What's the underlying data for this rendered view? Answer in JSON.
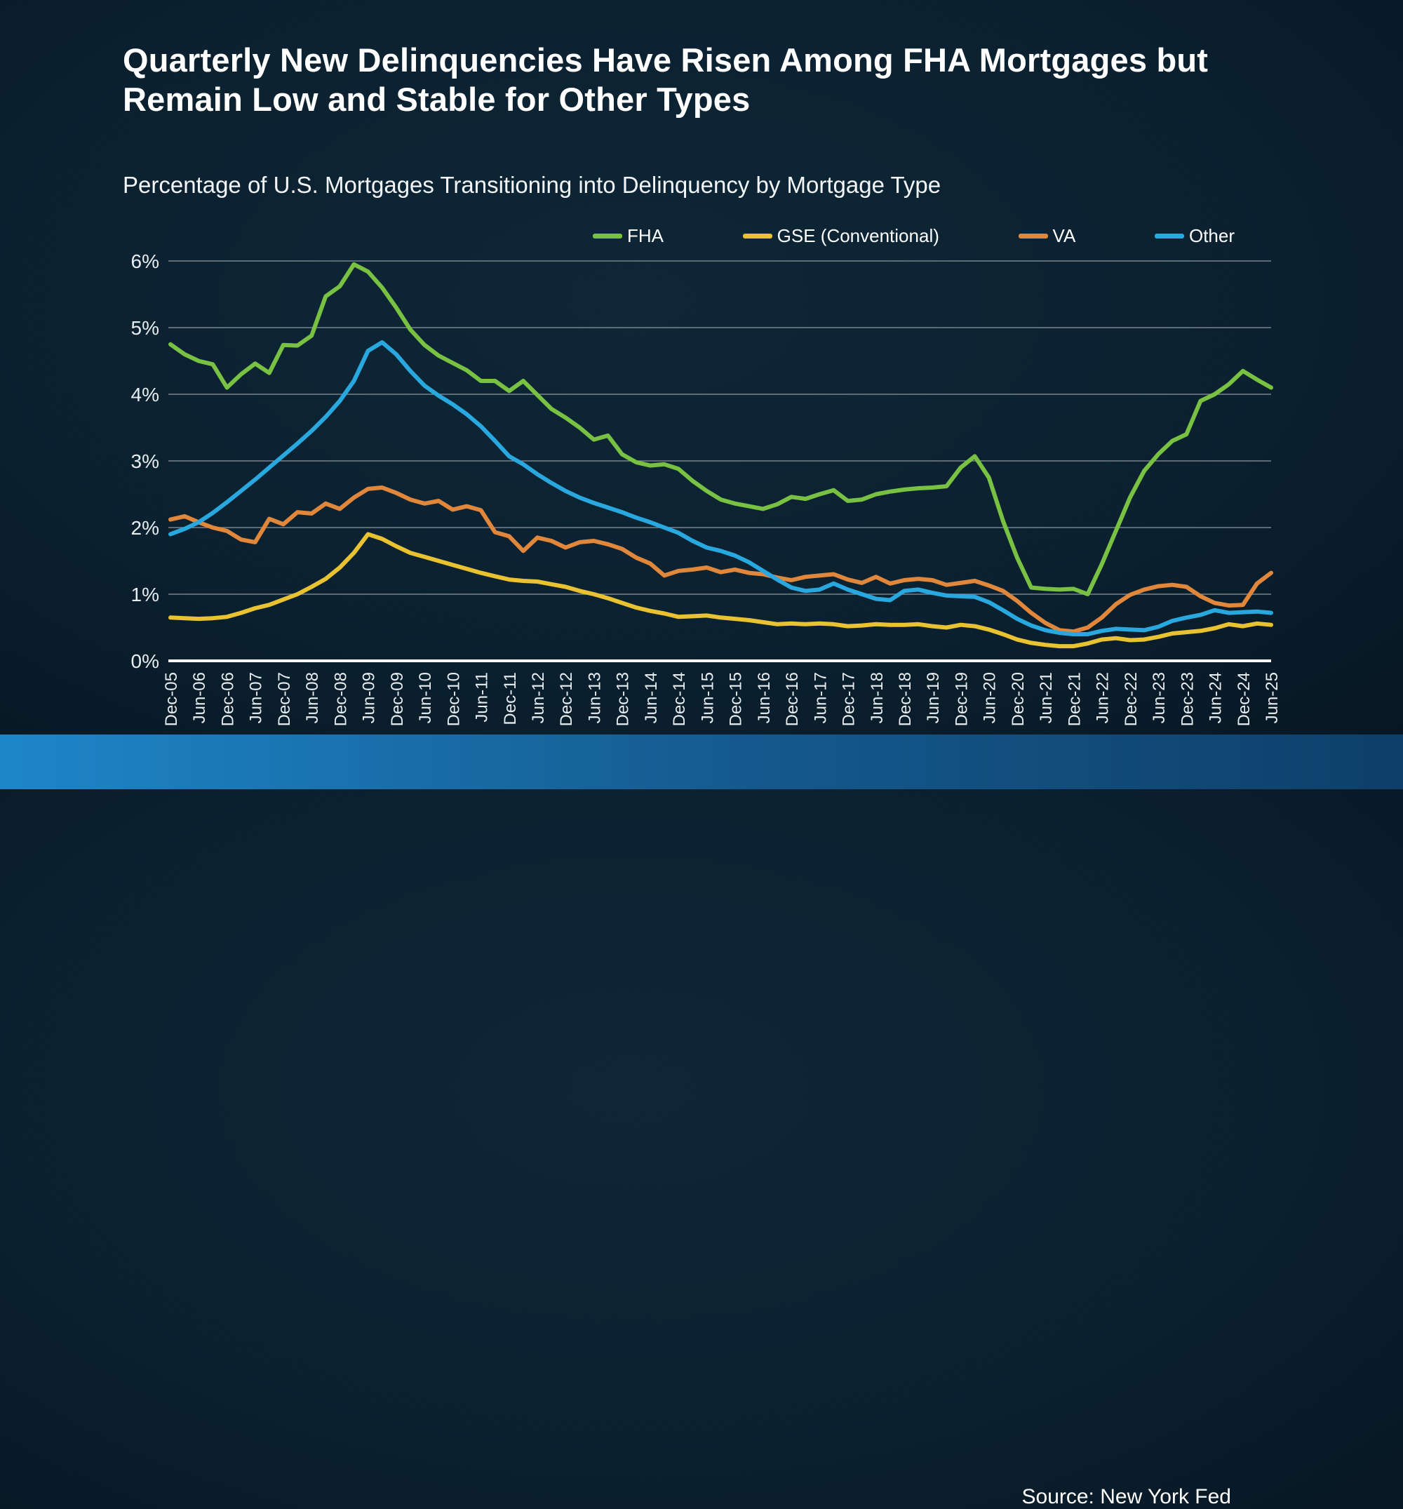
{
  "title": "Quarterly New Delinquencies Have Risen Among FHA Mortgages but Remain Low and Stable for Other Types",
  "subtitle": "Percentage of U.S. Mortgages Transitioning into Delinquency by Mortgage Type",
  "source": "Source: New York Fed",
  "colors": {
    "background": "#0b2130",
    "grid": "#78838c",
    "axis": "#ffffff",
    "tick_text": "#e8edf1",
    "title_text": "#ffffff",
    "footer_left": "#1e86c9",
    "footer_right": "#0e3f69"
  },
  "chart_data": {
    "type": "line",
    "title": "Percentage of U.S. Mortgages Transitioning into Delinquency by Mortgage Type",
    "xlabel": "",
    "ylabel": "",
    "ylim": [
      0,
      6
    ],
    "grid": true,
    "legend_position": "top",
    "y_tick_labels": [
      "0%",
      "1%",
      "2%",
      "3%",
      "4%",
      "5%",
      "6%"
    ],
    "x_tick_step": 2,
    "categories": [
      "Dec-05",
      "Mar-06",
      "Jun-06",
      "Sep-06",
      "Dec-06",
      "Mar-07",
      "Jun-07",
      "Sep-07",
      "Dec-07",
      "Mar-08",
      "Jun-08",
      "Sep-08",
      "Dec-08",
      "Mar-09",
      "Jun-09",
      "Sep-09",
      "Dec-09",
      "Mar-10",
      "Jun-10",
      "Sep-10",
      "Dec-10",
      "Mar-11",
      "Jun-11",
      "Sep-11",
      "Dec-11",
      "Mar-12",
      "Jun-12",
      "Sep-12",
      "Dec-12",
      "Mar-13",
      "Jun-13",
      "Sep-13",
      "Dec-13",
      "Mar-14",
      "Jun-14",
      "Sep-14",
      "Dec-14",
      "Mar-15",
      "Jun-15",
      "Sep-15",
      "Dec-15",
      "Mar-16",
      "Jun-16",
      "Sep-16",
      "Dec-16",
      "Mar-17",
      "Jun-17",
      "Sep-17",
      "Dec-17",
      "Mar-18",
      "Jun-18",
      "Sep-18",
      "Dec-18",
      "Mar-19",
      "Jun-19",
      "Sep-19",
      "Dec-19",
      "Mar-20",
      "Jun-20",
      "Sep-20",
      "Dec-20",
      "Mar-21",
      "Jun-21",
      "Sep-21",
      "Dec-21",
      "Mar-22",
      "Jun-22",
      "Sep-22",
      "Dec-22",
      "Mar-23",
      "Jun-23",
      "Sep-23",
      "Dec-23",
      "Mar-24",
      "Jun-24",
      "Sep-24",
      "Dec-24",
      "Mar-25",
      "Jun-25"
    ],
    "series": [
      {
        "name": "FHA",
        "color": "#78c142",
        "values": [
          4.75,
          4.6,
          4.5,
          4.45,
          4.1,
          4.3,
          4.46,
          4.32,
          4.74,
          4.73,
          4.88,
          5.47,
          5.62,
          5.95,
          5.84,
          5.6,
          5.3,
          4.97,
          4.74,
          4.58,
          4.47,
          4.36,
          4.2,
          4.2,
          4.05,
          4.2,
          3.99,
          3.78,
          3.65,
          3.5,
          3.32,
          3.38,
          3.1,
          2.98,
          2.93,
          2.95,
          2.88,
          2.7,
          2.55,
          2.42,
          2.36,
          2.32,
          2.28,
          2.35,
          2.46,
          2.43,
          2.5,
          2.56,
          2.4,
          2.42,
          2.5,
          2.54,
          2.57,
          2.59,
          2.6,
          2.62,
          2.9,
          3.07,
          2.75,
          2.1,
          1.55,
          1.1,
          1.08,
          1.07,
          1.08,
          1.0,
          1.45,
          1.95,
          2.45,
          2.85,
          3.1,
          3.3,
          3.4,
          3.9,
          4.0,
          4.15,
          4.35,
          4.22,
          4.1
        ]
      },
      {
        "name": "GSE (Conventional)",
        "color": "#e9c231",
        "values": [
          0.65,
          0.64,
          0.63,
          0.64,
          0.66,
          0.72,
          0.79,
          0.84,
          0.92,
          1.0,
          1.11,
          1.23,
          1.4,
          1.62,
          1.9,
          1.83,
          1.72,
          1.62,
          1.56,
          1.5,
          1.44,
          1.38,
          1.32,
          1.27,
          1.22,
          1.2,
          1.19,
          1.15,
          1.11,
          1.05,
          1.0,
          0.94,
          0.87,
          0.8,
          0.75,
          0.71,
          0.66,
          0.67,
          0.68,
          0.65,
          0.63,
          0.61,
          0.58,
          0.55,
          0.56,
          0.55,
          0.56,
          0.55,
          0.52,
          0.53,
          0.55,
          0.54,
          0.54,
          0.55,
          0.52,
          0.5,
          0.54,
          0.52,
          0.47,
          0.4,
          0.32,
          0.27,
          0.24,
          0.22,
          0.22,
          0.26,
          0.32,
          0.34,
          0.31,
          0.32,
          0.36,
          0.41,
          0.43,
          0.45,
          0.49,
          0.55,
          0.52,
          0.56,
          0.54
        ]
      },
      {
        "name": "VA",
        "color": "#e0873c",
        "values": [
          2.12,
          2.17,
          2.08,
          2.0,
          1.95,
          1.82,
          1.78,
          2.13,
          2.05,
          2.23,
          2.21,
          2.36,
          2.28,
          2.45,
          2.58,
          2.6,
          2.52,
          2.42,
          2.36,
          2.4,
          2.27,
          2.32,
          2.26,
          1.93,
          1.87,
          1.65,
          1.85,
          1.8,
          1.7,
          1.78,
          1.8,
          1.75,
          1.68,
          1.55,
          1.46,
          1.28,
          1.35,
          1.37,
          1.4,
          1.33,
          1.37,
          1.32,
          1.3,
          1.25,
          1.21,
          1.26,
          1.28,
          1.3,
          1.22,
          1.17,
          1.26,
          1.16,
          1.21,
          1.23,
          1.21,
          1.14,
          1.17,
          1.2,
          1.13,
          1.05,
          0.9,
          0.72,
          0.57,
          0.46,
          0.44,
          0.5,
          0.65,
          0.85,
          0.99,
          1.07,
          1.12,
          1.14,
          1.11,
          0.97,
          0.87,
          0.83,
          0.84,
          1.16,
          1.32
        ]
      },
      {
        "name": "Other",
        "color": "#29a8e0",
        "values": [
          1.9,
          1.98,
          2.08,
          2.22,
          2.38,
          2.55,
          2.72,
          2.9,
          3.08,
          3.26,
          3.45,
          3.66,
          3.9,
          4.2,
          4.65,
          4.78,
          4.6,
          4.35,
          4.13,
          3.98,
          3.85,
          3.7,
          3.52,
          3.3,
          3.07,
          2.95,
          2.8,
          2.67,
          2.55,
          2.45,
          2.37,
          2.3,
          2.23,
          2.15,
          2.08,
          2.0,
          1.92,
          1.8,
          1.7,
          1.65,
          1.58,
          1.48,
          1.35,
          1.22,
          1.1,
          1.05,
          1.07,
          1.16,
          1.07,
          1.0,
          0.93,
          0.91,
          1.05,
          1.07,
          1.02,
          0.98,
          0.97,
          0.96,
          0.88,
          0.76,
          0.63,
          0.53,
          0.46,
          0.42,
          0.4,
          0.4,
          0.45,
          0.48,
          0.47,
          0.46,
          0.51,
          0.6,
          0.65,
          0.69,
          0.76,
          0.72,
          0.73,
          0.74,
          0.72
        ]
      }
    ]
  }
}
